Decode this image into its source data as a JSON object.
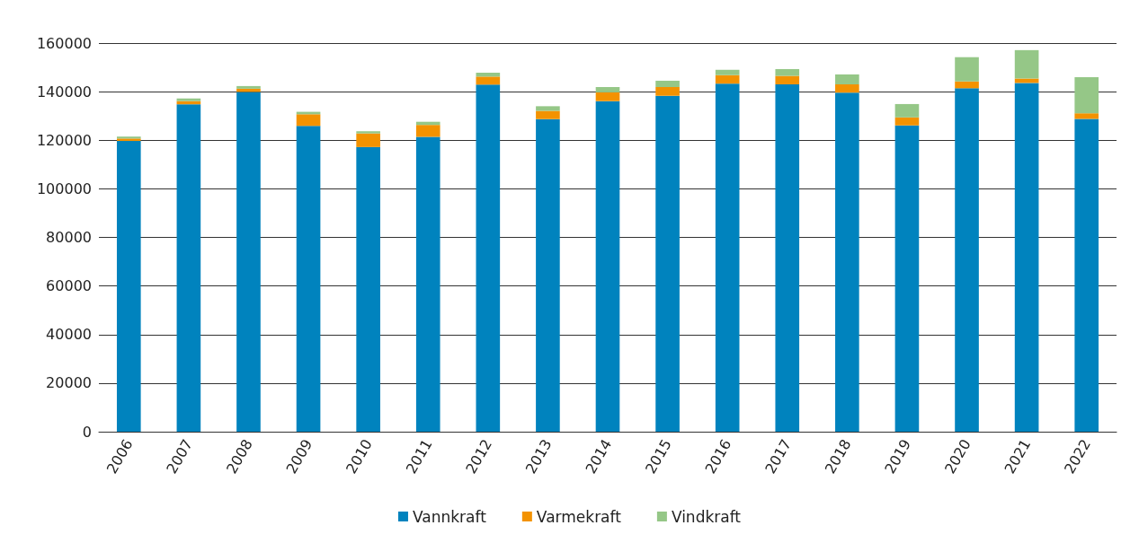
{
  "chart_data": {
    "type": "bar",
    "stacked": true,
    "categories": [
      "2006",
      "2007",
      "2008",
      "2009",
      "2010",
      "2011",
      "2012",
      "2013",
      "2014",
      "2015",
      "2016",
      "2017",
      "2018",
      "2019",
      "2020",
      "2021",
      "2022"
    ],
    "series": [
      {
        "name": "Vannkraft",
        "color": "#0083be",
        "values": [
          119700,
          134800,
          139900,
          125900,
          117200,
          121400,
          142900,
          128700,
          136100,
          138300,
          143300,
          143000,
          139600,
          126100,
          141400,
          143600,
          128800
        ]
      },
      {
        "name": "Varmekraft",
        "color": "#f39200",
        "values": [
          1000,
          1300,
          1300,
          4800,
          5600,
          4900,
          3300,
          3400,
          3600,
          3600,
          3500,
          3500,
          3400,
          3300,
          2800,
          1800,
          2300
        ]
      },
      {
        "name": "Vindkraft",
        "color": "#95c787",
        "values": [
          800,
          1100,
          1100,
          1000,
          900,
          1300,
          1600,
          1900,
          2200,
          2600,
          2200,
          2800,
          4100,
          5500,
          10000,
          11700,
          14900
        ]
      }
    ],
    "ylim": [
      0,
      160000
    ],
    "yticks": [
      0,
      20000,
      40000,
      60000,
      80000,
      100000,
      120000,
      140000,
      160000
    ],
    "grid": "y",
    "legend": "bottom"
  }
}
